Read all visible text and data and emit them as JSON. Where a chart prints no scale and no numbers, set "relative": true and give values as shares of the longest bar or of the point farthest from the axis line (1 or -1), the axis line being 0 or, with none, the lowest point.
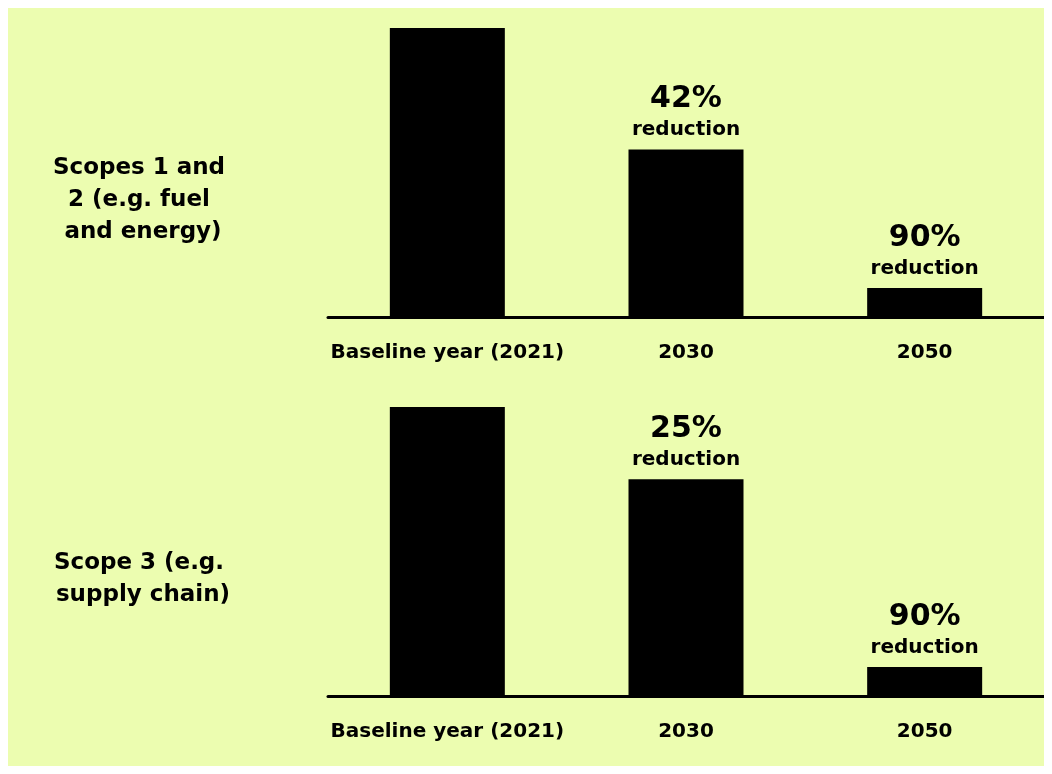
{
  "chart_data": [
    {
      "type": "bar",
      "title": "Scopes 1 and 2 (e.g. fuel and energy)",
      "categories": [
        "Baseline year (2021)",
        "2030",
        "2050"
      ],
      "values": [
        1,
        0.58,
        0.1
      ],
      "color": "#000000",
      "relative": true,
      "annotations": [
        {
          "text": "42% reduction",
          "x": "2030",
          "y": 0.58
        },
        {
          "text": "90% reduction",
          "x": "2050",
          "y": 0.1
        }
      ]
    },
    {
      "type": "bar",
      "title": "Scope 3 (e.g. supply chain)",
      "categories": [
        "Baseline year (2021)",
        "2030",
        "2050"
      ],
      "values": [
        1,
        0.75,
        0.1
      ],
      "color": "#000000",
      "relative": true,
      "annotations": [
        {
          "text": "25% reduction",
          "x": "2030",
          "y": 0.75
        },
        {
          "text": "90% reduction",
          "x": "2050",
          "y": 0.1
        }
      ]
    }
  ]
}
